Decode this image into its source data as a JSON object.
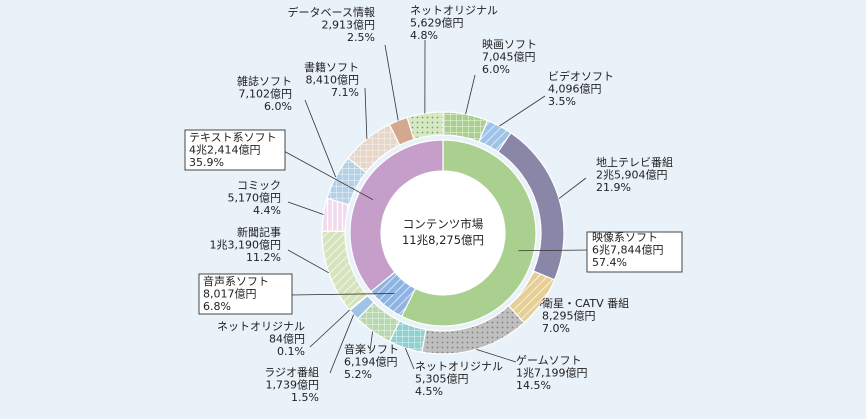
{
  "chart_data": {
    "type": "pie",
    "title": "",
    "center_label": [
      "コンテンツ市場",
      "11兆8,275億円"
    ],
    "inner_ring": [
      {
        "name": "映像系ソフト",
        "amount": "6兆7,844億円",
        "percent": 57.4,
        "color": "#a9d08e",
        "fill": "solid"
      },
      {
        "name": "音声系ソフト",
        "amount": "8,017億円",
        "percent": 6.8,
        "color": "#8eb4e3",
        "fill": "hatch"
      },
      {
        "name": "テキスト系ソフト",
        "amount": "4兆2,414億円",
        "percent": 35.9,
        "color": "#c59fca",
        "fill": "solid"
      }
    ],
    "outer_ring": [
      {
        "name": "映画ソフト",
        "amount": "7,045億円",
        "percent": 6.0,
        "color": "#a9d08e",
        "fill": "grid"
      },
      {
        "name": "ビデオソフト",
        "amount": "4,096億円",
        "percent": 3.5,
        "color": "#9dc3e6",
        "fill": "hatch"
      },
      {
        "name": "地上テレビ番組",
        "amount": "2兆5,904億円",
        "percent": 21.9,
        "color": "#8a86a8",
        "fill": "solid"
      },
      {
        "name": "衛星・CATV 番組",
        "amount": "8,295億円",
        "percent": 7.0,
        "color": "#e5cf96",
        "fill": "hatch"
      },
      {
        "name": "ゲームソフト",
        "amount": "1兆7,199億円",
        "percent": 14.5,
        "color": "#bfbfbf",
        "fill": "dots"
      },
      {
        "name": "ネットオリジナル",
        "amount": "5,305億円",
        "percent": 4.5,
        "color": "#8fd0d0",
        "fill": "grid"
      },
      {
        "name": "音楽ソフト",
        "amount": "6,194億円",
        "percent": 5.2,
        "color": "#b7d9b0",
        "fill": "grid"
      },
      {
        "name": "ラジオ番組",
        "amount": "1,739億円",
        "percent": 1.5,
        "color": "#9dc3e6",
        "fill": "solid"
      },
      {
        "name": "ネットオリジナル",
        "amount": "84億円",
        "percent": 0.1,
        "color": "#6a86b4",
        "fill": "solid"
      },
      {
        "name": "新聞記事",
        "amount": "1兆3,190億円",
        "percent": 11.2,
        "color": "#d6e4bd",
        "fill": "hatch"
      },
      {
        "name": "コミック",
        "amount": "5,170億円",
        "percent": 4.4,
        "color": "#f2d9ec",
        "fill": "vlines"
      },
      {
        "name": "雑誌ソフト",
        "amount": "7,102億円",
        "percent": 6.0,
        "color": "#b4d2e7",
        "fill": "grid"
      },
      {
        "name": "書籍ソフト",
        "amount": "8,410億円",
        "percent": 7.1,
        "color": "#e8d6c8",
        "fill": "grid"
      },
      {
        "name": "データベース情報",
        "amount": "2,913億円",
        "percent": 2.5,
        "color": "#d4a88f",
        "fill": "solid"
      },
      {
        "name": "ネットオリジナル",
        "amount": "5,629億円",
        "percent": 4.8,
        "color": "#d6eac2",
        "fill": "dots"
      }
    ]
  }
}
